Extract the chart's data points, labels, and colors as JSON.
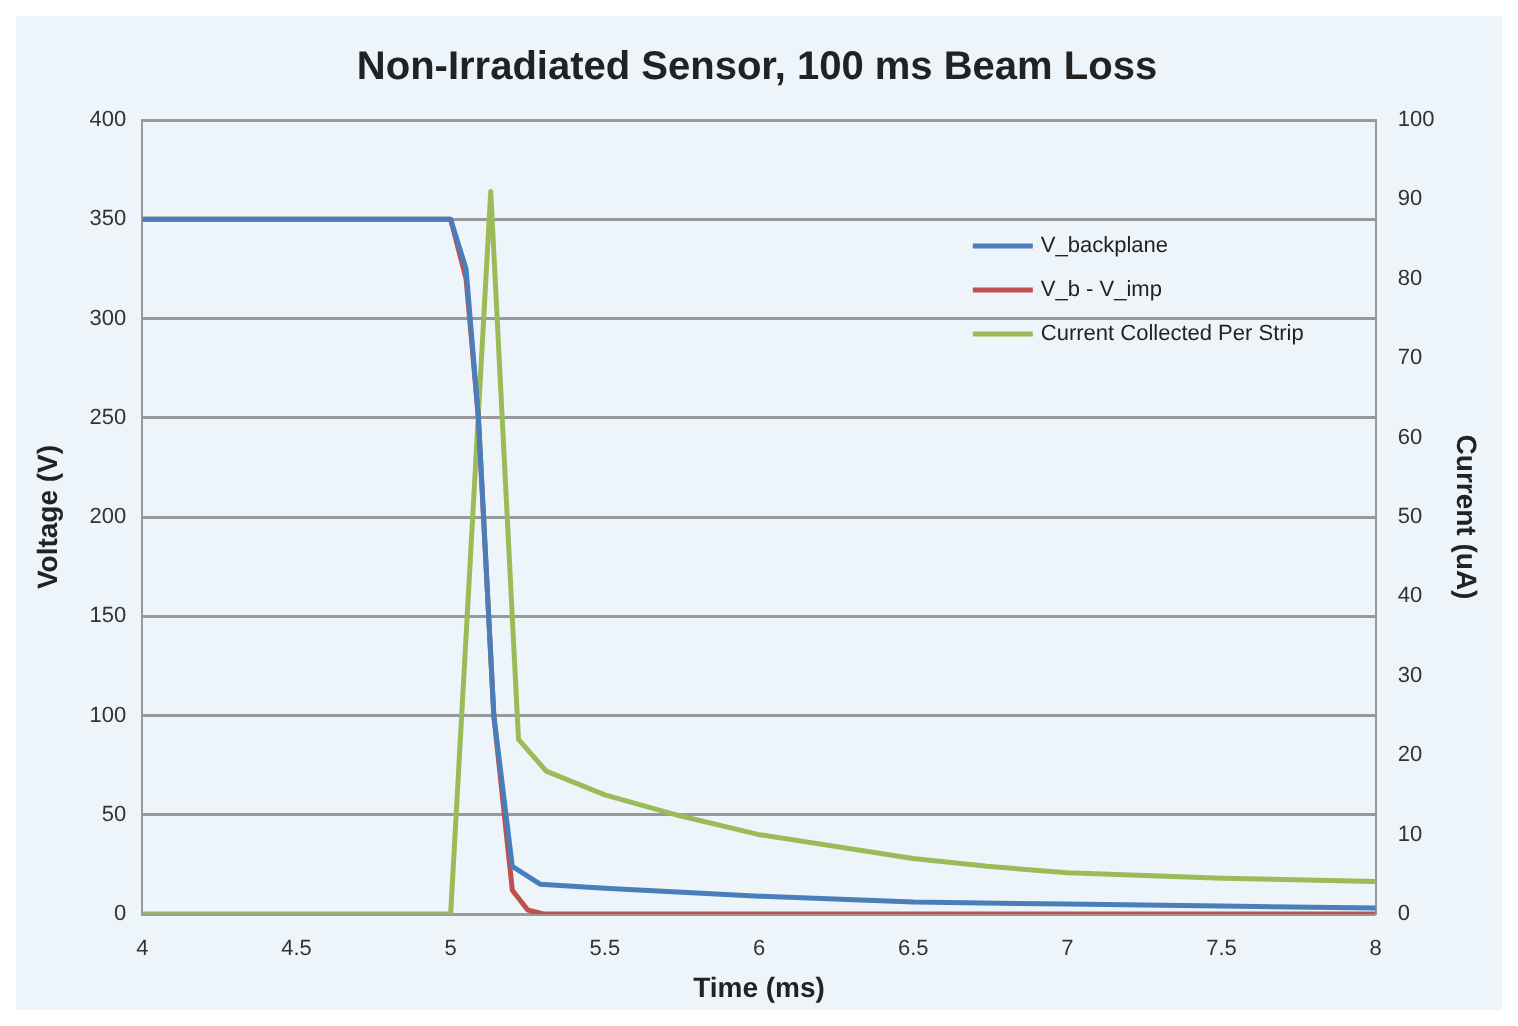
{
  "chart_data": {
    "type": "line",
    "title": "Non-Irradiated Sensor, 100 ms Beam Loss",
    "xlabel": "Time (ms)",
    "ylabel": "Voltage (V)",
    "y2label": "Current (uA)",
    "xlim": [
      4,
      8
    ],
    "xticks": [
      4,
      4.5,
      5,
      5.5,
      6,
      6.5,
      7,
      7.5,
      8
    ],
    "ylim": [
      0,
      400
    ],
    "yticks": [
      0,
      50,
      100,
      150,
      200,
      250,
      300,
      350,
      400
    ],
    "y2lim": [
      0,
      100
    ],
    "y2ticks": [
      0,
      10,
      20,
      30,
      40,
      50,
      60,
      70,
      80,
      90,
      100
    ],
    "grid": "y",
    "legend": "top right",
    "marker": "none",
    "line_style": "solid",
    "series": [
      {
        "name": "V_backplane",
        "color": "#4a7ebb",
        "x": [
          4,
          5,
          5.05,
          5.09,
          5.14,
          5.2,
          5.29,
          5.5,
          6,
          6.5,
          7,
          7.5,
          8
        ],
        "values": [
          350,
          350,
          325,
          250,
          100,
          24,
          15,
          13,
          9,
          6,
          5,
          4,
          3
        ]
      },
      {
        "name": "V_b - V_imp",
        "color": "#c0504d",
        "x": [
          4,
          5,
          5.05,
          5.09,
          5.14,
          5.2,
          5.25,
          5.3,
          6,
          7,
          8
        ],
        "values": [
          350,
          350,
          320,
          250,
          100,
          12,
          2,
          0,
          0,
          0,
          0
        ]
      },
      {
        "name": "Current Collected Per Strip",
        "color": "#9bbb59",
        "axis": "y2",
        "x": [
          4,
          5,
          5.13,
          5.22,
          5.31,
          5.5,
          5.74,
          6,
          6.5,
          6.74,
          7,
          7.5,
          8
        ],
        "values": [
          0,
          0,
          91,
          22,
          18,
          15,
          12.4,
          10,
          7,
          6,
          5.2,
          4.5,
          4.1
        ]
      }
    ]
  }
}
